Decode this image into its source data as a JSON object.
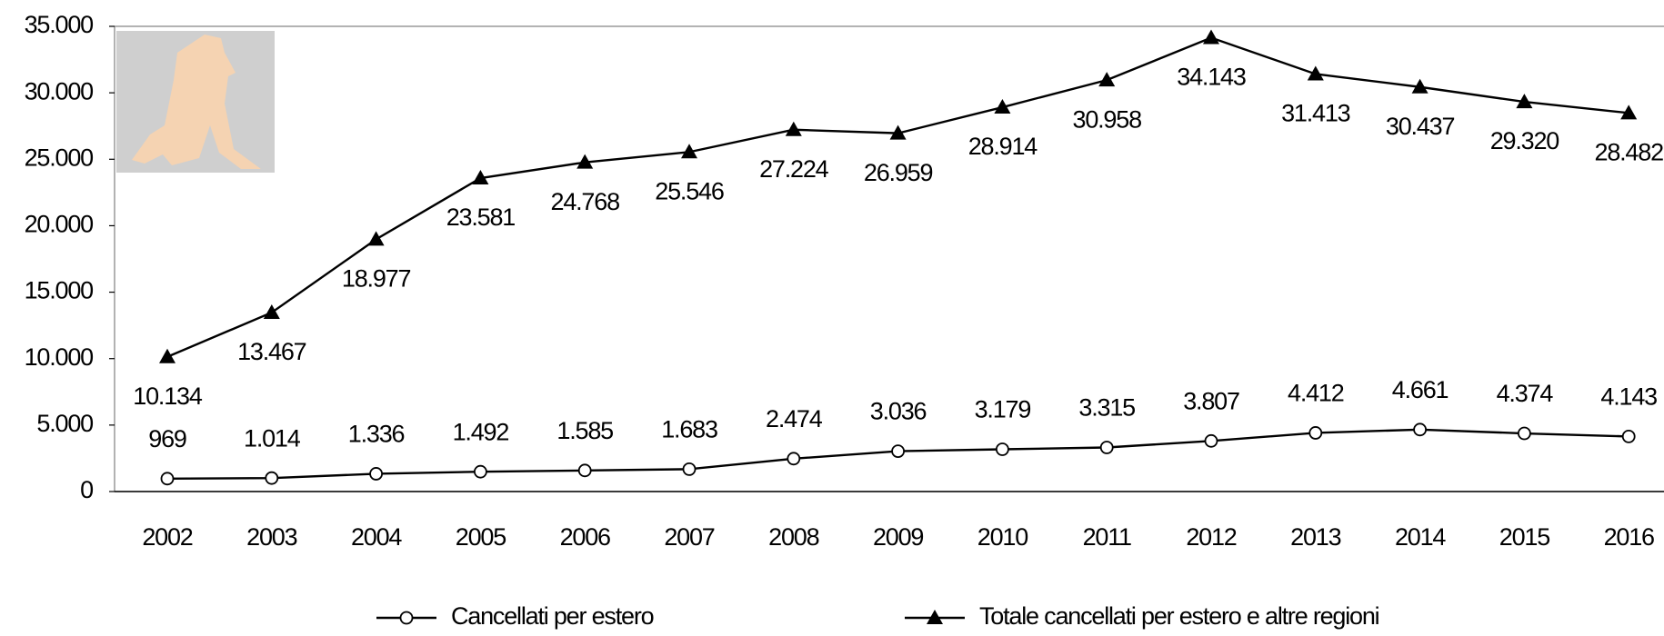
{
  "chart_data": {
    "type": "line",
    "categories": [
      "2002",
      "2003",
      "2004",
      "2005",
      "2006",
      "2007",
      "2008",
      "2009",
      "2010",
      "2011",
      "2012",
      "2013",
      "2014",
      "2015",
      "2016"
    ],
    "series": [
      {
        "name": "Cancellati per estero",
        "color": "#000000",
        "marker": "circle",
        "values": [
          969,
          1014,
          1336,
          1492,
          1585,
          1683,
          2474,
          3036,
          3179,
          3315,
          3807,
          4412,
          4661,
          4374,
          4143
        ],
        "value_labels": [
          "969",
          "1.014",
          "1.336",
          "1.492",
          "1.585",
          "1.683",
          "2.474",
          "3.036",
          "3.179",
          "3.315",
          "3.807",
          "4.412",
          "4.661",
          "4.374",
          "4.143"
        ]
      },
      {
        "name": "Totale cancellati per estero e altre regioni",
        "color": "#000000",
        "marker": "triangle",
        "values": [
          10134,
          13467,
          18977,
          23581,
          24768,
          25546,
          27224,
          26959,
          28914,
          30958,
          34143,
          31413,
          30437,
          29320,
          28482
        ],
        "value_labels": [
          "10.134",
          "13.467",
          "18.977",
          "23.581",
          "24.768",
          "25.546",
          "27.224",
          "26.959",
          "28.914",
          "30.958",
          "34.143",
          "31.413",
          "30.437",
          "29.320",
          "28.482"
        ]
      }
    ],
    "ylim": [
      0,
      35000
    ],
    "yticks": [
      0,
      {
        "value": 5000,
        "label": "5.000"
      },
      {
        "value": 10000,
        "label": "10.000"
      },
      {
        "value": 15000,
        "label": "15.000"
      },
      {
        "value": 20000,
        "label": "20.000"
      },
      {
        "value": 25000,
        "label": "25.000"
      },
      {
        "value": 30000,
        "label": "30.000"
      },
      {
        "value": 35000,
        "label": "35.000"
      }
    ],
    "legend": "bottom"
  }
}
